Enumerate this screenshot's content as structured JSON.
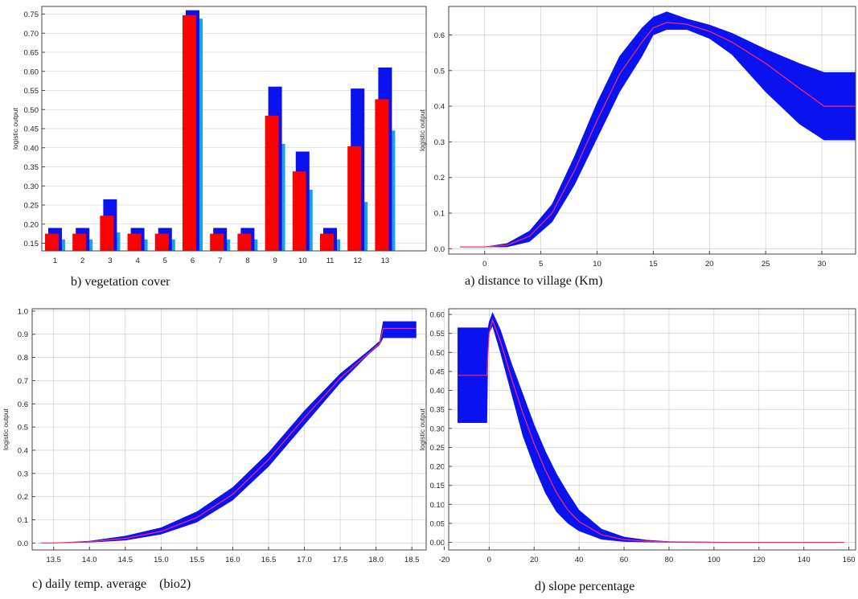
{
  "colors": {
    "band": "#0a12f0",
    "mean": "#ff2a6a",
    "bar_red": "#ff0000",
    "bar_blue": "#0a12f0",
    "bar_cyan": "#1aa3e0",
    "grid": "#c8c8c8"
  },
  "chart_data": [
    {
      "id": "veg",
      "type": "bar",
      "caption": "b) vegetation cover",
      "ylabel": "logistic output",
      "categories": [
        "1",
        "2",
        "3",
        "4",
        "5",
        "6",
        "7",
        "8",
        "9",
        "10",
        "11",
        "12",
        "13"
      ],
      "ylim": [
        0.13,
        0.77
      ],
      "yticks": [
        "0.15",
        "0.20",
        "0.25",
        "0.30",
        "0.35",
        "0.40",
        "0.45",
        "0.50",
        "0.55",
        "0.60",
        "0.65",
        "0.70",
        "0.75"
      ],
      "series": [
        {
          "role": "upper",
          "values": [
            0.19,
            0.19,
            0.265,
            0.19,
            0.19,
            0.76,
            0.19,
            0.19,
            0.56,
            0.39,
            0.19,
            0.555,
            0.61
          ]
        },
        {
          "role": "mean",
          "values": [
            0.175,
            0.175,
            0.222,
            0.175,
            0.175,
            0.747,
            0.175,
            0.175,
            0.484,
            0.338,
            0.175,
            0.404,
            0.527
          ]
        },
        {
          "role": "lower",
          "values": [
            0.16,
            0.16,
            0.178,
            0.16,
            0.16,
            0.738,
            0.16,
            0.16,
            0.41,
            0.29,
            0.16,
            0.258,
            0.445
          ]
        }
      ]
    },
    {
      "id": "dist",
      "type": "area",
      "caption": "a) distance to village (Km)",
      "ylabel": "logistic output",
      "xlim": [
        -3.2,
        33
      ],
      "ylim": [
        -0.015,
        0.68
      ],
      "xticks": [
        "0",
        "5",
        "10",
        "15",
        "20",
        "25",
        "30",
        "35"
      ],
      "yticks": [
        "0.0",
        "0.1",
        "0.2",
        "0.3",
        "0.4",
        "0.5",
        "0.6"
      ],
      "x": [
        -2.2,
        0,
        2,
        4,
        6,
        8,
        10,
        12,
        14,
        15,
        16.2,
        18,
        20,
        22,
        25,
        28,
        30.2,
        33
      ],
      "y": [
        0.005,
        0.005,
        0.01,
        0.035,
        0.1,
        0.22,
        0.36,
        0.49,
        0.58,
        0.62,
        0.635,
        0.63,
        0.61,
        0.58,
        0.52,
        0.45,
        0.4,
        0.4
      ],
      "y_low": [
        0.005,
        0.005,
        0.005,
        0.02,
        0.075,
        0.18,
        0.31,
        0.44,
        0.54,
        0.6,
        0.615,
        0.615,
        0.59,
        0.545,
        0.44,
        0.35,
        0.305,
        0.305
      ],
      "y_high": [
        0.005,
        0.005,
        0.015,
        0.05,
        0.125,
        0.26,
        0.41,
        0.54,
        0.62,
        0.65,
        0.665,
        0.645,
        0.628,
        0.605,
        0.56,
        0.52,
        0.495,
        0.495
      ]
    },
    {
      "id": "temp",
      "type": "area",
      "caption": "c) daily temp. average    (bio2)",
      "ylabel": "logistic output",
      "xlim": [
        13.2,
        18.7
      ],
      "ylim": [
        -0.03,
        1.01
      ],
      "xticks": [
        "13.5",
        "14.0",
        "14.5",
        "15.0",
        "15.5",
        "16.0",
        "16.5",
        "17.0",
        "17.5",
        "18.0",
        "18.5"
      ],
      "yticks": [
        "0.0",
        "0.1",
        "0.2",
        "0.3",
        "0.4",
        "0.5",
        "0.6",
        "0.7",
        "0.8",
        "0.9",
        "1.0"
      ],
      "x": [
        13.32,
        13.5,
        14.0,
        14.5,
        15.0,
        15.5,
        16.0,
        16.5,
        17.0,
        17.5,
        17.9,
        18.05,
        18.1,
        18.56
      ],
      "y": [
        0.0,
        0.0,
        0.005,
        0.02,
        0.05,
        0.11,
        0.21,
        0.36,
        0.54,
        0.71,
        0.82,
        0.86,
        0.925,
        0.925
      ],
      "y_low": [
        0.0,
        0.0,
        0.003,
        0.012,
        0.038,
        0.09,
        0.185,
        0.33,
        0.51,
        0.69,
        0.815,
        0.855,
        0.885,
        0.885
      ],
      "y_high": [
        0.0,
        0.0,
        0.008,
        0.03,
        0.066,
        0.135,
        0.24,
        0.39,
        0.57,
        0.73,
        0.83,
        0.87,
        0.955,
        0.955
      ]
    },
    {
      "id": "slope",
      "type": "area",
      "caption": "d) slope percentage",
      "ylabel": "logistic output",
      "xlim": [
        -18,
        163
      ],
      "ylim": [
        -0.02,
        0.615
      ],
      "xticks": [
        "-20",
        "0",
        "20",
        "40",
        "60",
        "80",
        "100",
        "120",
        "140",
        "160"
      ],
      "yticks": [
        "0.00",
        "0.05",
        "0.10",
        "0.15",
        "0.20",
        "0.25",
        "0.30",
        "0.35",
        "0.40",
        "0.45",
        "0.50",
        "0.55",
        "0.60"
      ],
      "x": [
        -14,
        -1,
        -0.5,
        0,
        1.5,
        5,
        10,
        15,
        20,
        25,
        30,
        35,
        40,
        50,
        60,
        70,
        80,
        100,
        120,
        140,
        158
      ],
      "y": [
        0.44,
        0.44,
        0.5,
        0.55,
        0.585,
        0.53,
        0.43,
        0.34,
        0.26,
        0.19,
        0.13,
        0.085,
        0.055,
        0.02,
        0.007,
        0.003,
        0.001,
        0,
        0,
        0,
        0
      ],
      "y_low": [
        0.315,
        0.315,
        0.5,
        0.55,
        0.57,
        0.5,
        0.39,
        0.28,
        0.2,
        0.13,
        0.08,
        0.05,
        0.03,
        0.008,
        0.002,
        0.001,
        0,
        0,
        0,
        0,
        0
      ],
      "y_high": [
        0.565,
        0.565,
        0.565,
        0.58,
        0.605,
        0.56,
        0.47,
        0.39,
        0.31,
        0.24,
        0.18,
        0.13,
        0.085,
        0.035,
        0.014,
        0.006,
        0.002,
        0.001,
        0,
        0,
        0
      ]
    }
  ]
}
